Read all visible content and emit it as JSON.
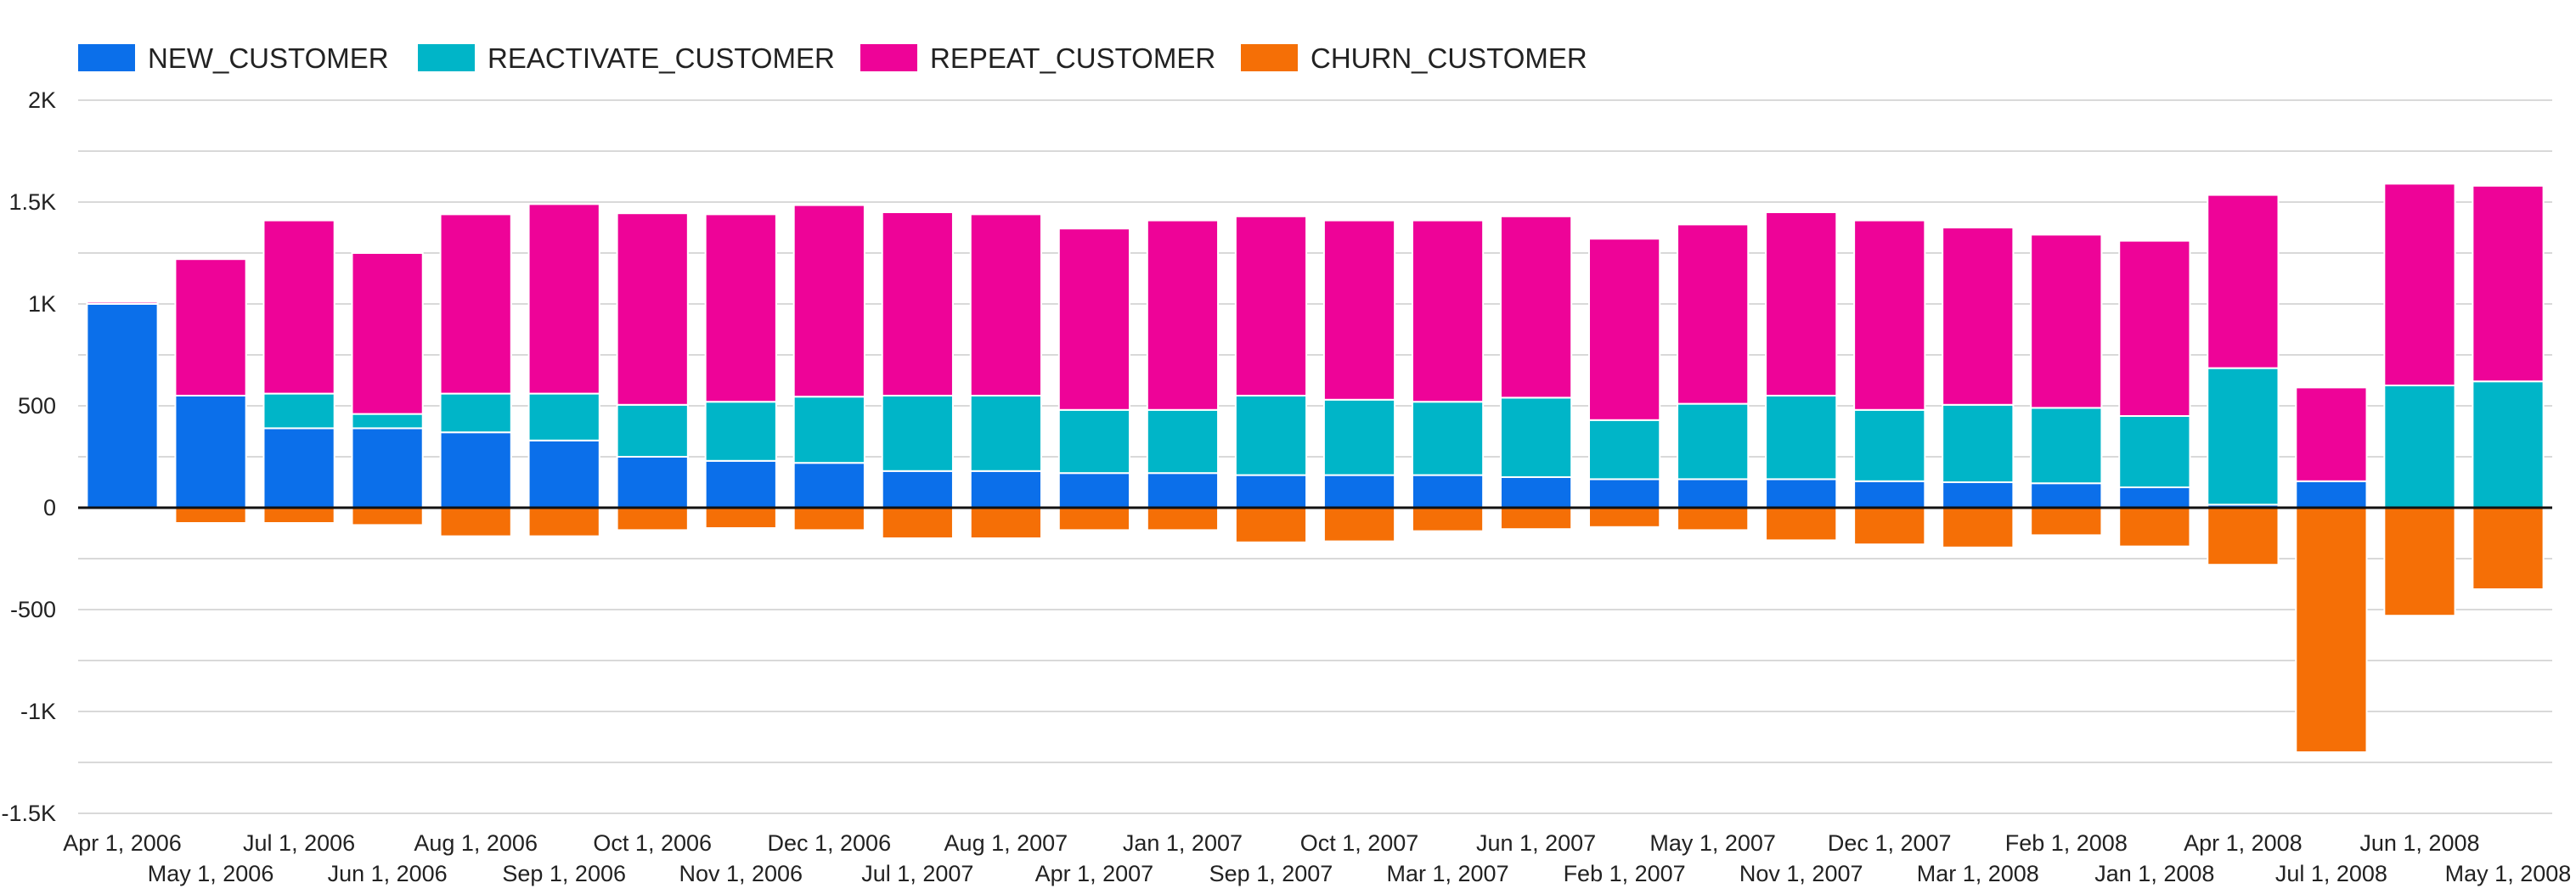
{
  "colors": {
    "new": "#0b6fea",
    "reactivate": "#00b5c8",
    "repeat": "#ee0398",
    "churn": "#f56f06",
    "grid": "#d9d9d9",
    "zero_line": "#111111"
  },
  "chart_data": {
    "type": "bar",
    "stacked": true,
    "legend_position": "top-left",
    "grid": true,
    "title": "",
    "xlabel": "",
    "ylabel": "",
    "ylim": [
      -1500,
      2000
    ],
    "yticks": [
      2000,
      1500,
      1000,
      500,
      0,
      -500,
      -1000,
      -1500
    ],
    "ytick_labels": [
      "2K",
      "1.5K",
      "1K",
      "500",
      "0",
      "-500",
      "-1K",
      "-1.5K"
    ],
    "categories": [
      "Apr 1, 2006",
      "May 1, 2006",
      "Jul 1, 2006",
      "Jun 1, 2006",
      "Aug 1, 2006",
      "Sep 1, 2006",
      "Oct 1, 2006",
      "Nov 1, 2006",
      "Dec 1, 2006",
      "Jul 1, 2007",
      "Aug 1, 2007",
      "Apr 1, 2007",
      "Jan 1, 2007",
      "Sep 1, 2007",
      "Oct 1, 2007",
      "Mar 1, 2007",
      "Jun 1, 2007",
      "Feb 1, 2007",
      "May 1, 2007",
      "Nov 1, 2007",
      "Dec 1, 2007",
      "Mar 1, 2008",
      "Feb 1, 2008",
      "Jan 1, 2008",
      "Apr 1, 2008",
      "Jul 1, 2008",
      "Jun 1, 2008",
      "May 1, 2008"
    ],
    "series": [
      {
        "name": "NEW_CUSTOMER",
        "color_key": "new",
        "values": [
          1000,
          550,
          390,
          390,
          370,
          330,
          250,
          230,
          220,
          180,
          180,
          170,
          170,
          160,
          160,
          160,
          150,
          140,
          140,
          140,
          130,
          125,
          120,
          100,
          15,
          130,
          0,
          0
        ]
      },
      {
        "name": "REACTIVATE_CUSTOMER",
        "color_key": "reactivate",
        "values": [
          0,
          0,
          170,
          70,
          190,
          230,
          255,
          290,
          325,
          370,
          370,
          310,
          310,
          390,
          370,
          360,
          390,
          290,
          370,
          410,
          350,
          380,
          370,
          350,
          670,
          0,
          600,
          620
        ]
      },
      {
        "name": "REPEAT_CUSTOMER",
        "color_key": "repeat",
        "values": [
          10,
          670,
          850,
          790,
          880,
          930,
          940,
          920,
          940,
          900,
          890,
          890,
          930,
          880,
          880,
          890,
          890,
          890,
          880,
          900,
          930,
          870,
          850,
          860,
          850,
          460,
          990,
          960
        ]
      },
      {
        "name": "CHURN_CUSTOMER",
        "color_key": "churn",
        "values": [
          0,
          -75,
          -75,
          -85,
          -140,
          -140,
          -110,
          -100,
          -110,
          -150,
          -150,
          -110,
          -110,
          -170,
          -165,
          -115,
          -105,
          -95,
          -110,
          -160,
          -180,
          -195,
          -135,
          -190,
          -280,
          -1200,
          -530,
          -400
        ]
      }
    ]
  }
}
